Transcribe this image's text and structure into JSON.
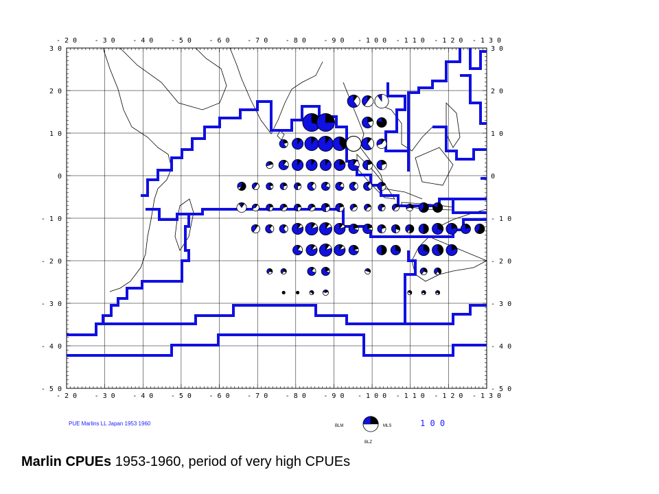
{
  "map": {
    "lon_labels": [
      "- 2 0",
      "- 3 0",
      "- 4 0",
      "- 5 0",
      "- 6 0",
      "- 7 0",
      "- 8 0",
      "- 9 0",
      "- 1 0 0",
      "- 1 1 0",
      "- 1 2 0",
      "- 1 3 0"
    ],
    "lat_labels": [
      "3 0",
      "2 0",
      "1 0",
      "0",
      "- 1 0",
      "- 2 0",
      "- 3 0",
      "- 4 0",
      "- 5 0"
    ],
    "colors": {
      "frame": "#000000",
      "coast": "#000000",
      "boundary": "#1010e0",
      "pie_blue": "#1010e0",
      "pie_black": "#000000"
    }
  },
  "legend": {
    "title": "PUE Marlins LL Japan 1953 1960",
    "key_blm": "BLM",
    "key_mls": "MLS",
    "key_blz": "BLZ",
    "scale_value": "1 0 0",
    "scale_fractions": {
      "blm": 0.25,
      "mls": 0.5,
      "blz": 0.25
    }
  },
  "caption": {
    "bold": "Marlin CPUEs",
    "rest": " 1953-1960, period of very high CPUEs"
  }
}
